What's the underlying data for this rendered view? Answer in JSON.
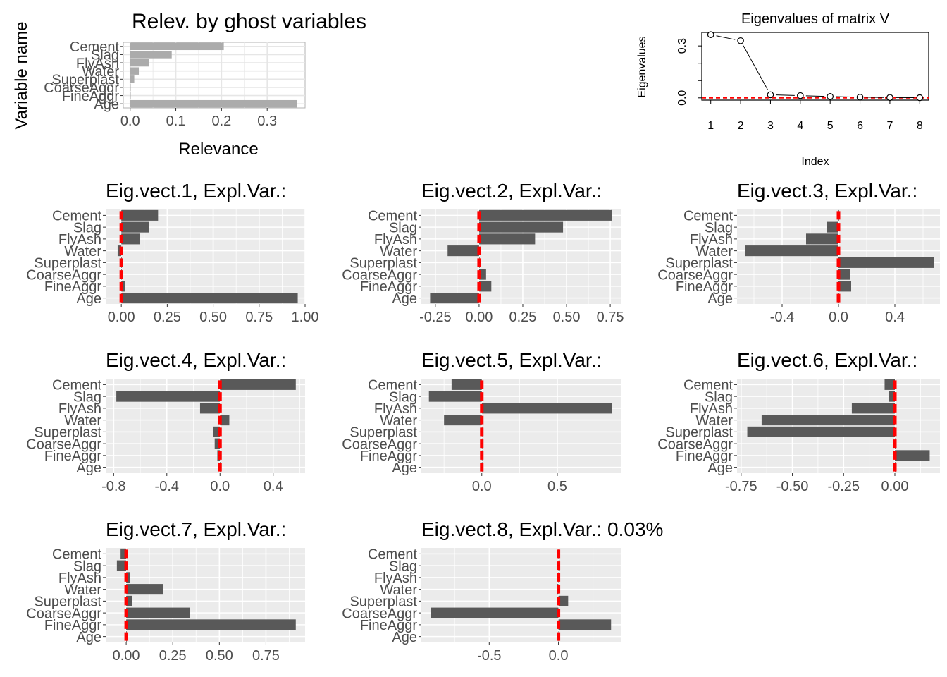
{
  "figure_colors": {
    "panel_bg": "#EBEBEB",
    "grid": "#FFFFFF",
    "bar": "#595959",
    "relevance_bar": "#ABABAB",
    "marker": "#FF0000",
    "text": "#4D4D4D",
    "title": "#000000"
  },
  "chart_data": [
    {
      "id": "relevance",
      "type": "bar",
      "orientation": "horizontal",
      "title": "Relev. by ghost variables",
      "xlabel": "Relevance",
      "ylabel": "Variable name",
      "categories": [
        "Cement",
        "Slag",
        "FlyAsh",
        "Water",
        "Superplast",
        "CoarseAggr",
        "FineAggr",
        "Age"
      ],
      "values": [
        0.205,
        0.091,
        0.042,
        0.019,
        0.009,
        0.001,
        0.001,
        0.365
      ],
      "xlim": [
        -0.015,
        0.383
      ],
      "xticks": [
        0.0,
        0.1,
        0.2,
        0.3
      ],
      "xtick_labels": [
        "0.0",
        "0.1",
        "0.2",
        "0.3"
      ],
      "grid": true
    },
    {
      "id": "eigenvalues",
      "type": "scatter",
      "title": "Eigenvalues of matrix V",
      "xlabel": "Index",
      "ylabel": "Eigenvalues",
      "x": [
        1,
        2,
        3,
        4,
        5,
        6,
        7,
        8
      ],
      "y": [
        0.365,
        0.33,
        0.018,
        0.013,
        0.008,
        0.004,
        0.002,
        0.001
      ],
      "reference_line": 0,
      "xlim": [
        0.7,
        8.3
      ],
      "ylim": [
        -0.013,
        0.378
      ],
      "xticks": [
        1,
        2,
        3,
        4,
        5,
        6,
        7,
        8
      ],
      "yticks": [
        0.0,
        0.3
      ],
      "ytick_labels": [
        "0.0",
        "0.3"
      ],
      "grid": false
    },
    {
      "id": "ev1",
      "type": "bar",
      "orientation": "horizontal",
      "title": "Eig.vect.1, Expl.Var.:",
      "categories": [
        "Cement",
        "Slag",
        "FlyAsh",
        "Water",
        "Superplast",
        "CoarseAggr",
        "FineAggr",
        "Age"
      ],
      "values": [
        0.2,
        0.15,
        0.1,
        -0.02,
        0.0,
        0.0,
        0.02,
        0.96
      ],
      "markers": [
        0,
        0,
        0,
        0,
        0,
        0,
        0,
        0
      ],
      "xlim": [
        -0.085,
        1.0
      ],
      "xticks": [
        0.0,
        0.25,
        0.5,
        0.75,
        1.0
      ],
      "xtick_labels": [
        "0.00",
        "0.25",
        "0.50",
        "0.75",
        "1.00"
      ],
      "grid": true
    },
    {
      "id": "ev2",
      "type": "bar",
      "orientation": "horizontal",
      "title": "Eig.vect.2, Expl.Var.:",
      "categories": [
        "Cement",
        "Slag",
        "FlyAsh",
        "Water",
        "Superplast",
        "CoarseAggr",
        "FineAggr",
        "Age"
      ],
      "values": [
        0.76,
        0.48,
        0.32,
        -0.18,
        0.0,
        0.04,
        0.07,
        -0.28
      ],
      "markers": [
        0,
        0,
        0,
        0,
        0,
        0,
        0,
        0
      ],
      "xlim": [
        -0.33,
        0.81
      ],
      "xticks": [
        -0.25,
        0.0,
        0.25,
        0.5,
        0.75
      ],
      "xtick_labels": [
        "-0.25",
        "0.00",
        "0.25",
        "0.50",
        "0.75"
      ],
      "grid": true
    },
    {
      "id": "ev3",
      "type": "bar",
      "orientation": "horizontal",
      "title": "Eig.vect.3, Expl.Var.:",
      "categories": [
        "Cement",
        "Slag",
        "FlyAsh",
        "Water",
        "Superplast",
        "CoarseAggr",
        "FineAggr",
        "Age"
      ],
      "values": [
        0.0,
        -0.08,
        -0.23,
        -0.66,
        0.68,
        0.08,
        0.09,
        0.0
      ],
      "markers": [
        0,
        0,
        0,
        0,
        0,
        0,
        0,
        0
      ],
      "xlim": [
        -0.72,
        0.72
      ],
      "xticks": [
        -0.4,
        0.0,
        0.4
      ],
      "xtick_labels": [
        "-0.4",
        "0.0",
        "0.4"
      ],
      "grid": true
    },
    {
      "id": "ev4",
      "type": "bar",
      "orientation": "horizontal",
      "title": "Eig.vect.4, Expl.Var.:",
      "categories": [
        "Cement",
        "Slag",
        "FlyAsh",
        "Water",
        "Superplast",
        "CoarseAggr",
        "FineAggr",
        "Age"
      ],
      "values": [
        0.57,
        -0.78,
        -0.15,
        0.07,
        -0.05,
        -0.04,
        -0.02,
        0.0
      ],
      "markers": [
        0,
        0,
        0,
        0,
        0,
        0,
        0,
        0
      ],
      "xlim": [
        -0.86,
        0.64
      ],
      "xticks": [
        -0.8,
        -0.4,
        0.0,
        0.4
      ],
      "xtick_labels": [
        "-0.8",
        "-0.4",
        "0.0",
        "0.4"
      ],
      "grid": true
    },
    {
      "id": "ev5",
      "type": "bar",
      "orientation": "horizontal",
      "title": "Eig.vect.5, Expl.Var.:",
      "categories": [
        "Cement",
        "Slag",
        "FlyAsh",
        "Water",
        "Superplast",
        "CoarseAggr",
        "FineAggr",
        "Age"
      ],
      "values": [
        -0.2,
        -0.35,
        0.86,
        -0.25,
        0.0,
        0.0,
        0.0,
        0.0
      ],
      "markers": [
        0,
        0,
        0,
        0,
        0,
        0,
        0,
        0
      ],
      "xlim": [
        -0.4,
        0.92
      ],
      "xticks": [
        0.0,
        0.5
      ],
      "xtick_labels": [
        "0.0",
        "0.5"
      ],
      "grid": true
    },
    {
      "id": "ev6",
      "type": "bar",
      "orientation": "horizontal",
      "title": "Eig.vect.6, Expl.Var.:",
      "categories": [
        "Cement",
        "Slag",
        "FlyAsh",
        "Water",
        "Superplast",
        "CoarseAggr",
        "FineAggr",
        "Age"
      ],
      "values": [
        -0.05,
        -0.03,
        -0.21,
        -0.65,
        -0.72,
        0.0,
        0.17,
        0.0
      ],
      "markers": [
        0,
        0,
        0,
        0,
        0,
        0,
        0,
        0
      ],
      "xlim": [
        -0.77,
        0.22
      ],
      "xticks": [
        -0.75,
        -0.5,
        -0.25,
        0.0
      ],
      "xtick_labels": [
        "-0.75",
        "-0.50",
        "-0.25",
        "0.00"
      ],
      "grid": true
    },
    {
      "id": "ev7",
      "type": "bar",
      "orientation": "horizontal",
      "title": "Eig.vect.7, Expl.Var.:",
      "categories": [
        "Cement",
        "Slag",
        "FlyAsh",
        "Water",
        "Superplast",
        "CoarseAggr",
        "FineAggr",
        "Age"
      ],
      "values": [
        -0.03,
        -0.05,
        0.02,
        0.2,
        0.03,
        0.34,
        0.91,
        0.0
      ],
      "markers": [
        0,
        0,
        0,
        0,
        0,
        0,
        0,
        0
      ],
      "xlim": [
        -0.11,
        0.96
      ],
      "xticks": [
        0.0,
        0.25,
        0.5,
        0.75
      ],
      "xtick_labels": [
        "0.00",
        "0.25",
        "0.50",
        "0.75"
      ],
      "grid": true
    },
    {
      "id": "ev8",
      "type": "bar",
      "orientation": "horizontal",
      "title": "Eig.vect.8, Expl.Var.: 0.03%",
      "categories": [
        "Cement",
        "Slag",
        "FlyAsh",
        "Water",
        "Superplast",
        "CoarseAggr",
        "FineAggr",
        "Age"
      ],
      "values": [
        0.0,
        0.01,
        0.0,
        -0.01,
        0.07,
        -0.92,
        0.38,
        0.0
      ],
      "markers": [
        0,
        0,
        0,
        0,
        0,
        0,
        0,
        0
      ],
      "xlim": [
        -0.99,
        0.45
      ],
      "xticks": [
        -0.5,
        0.0
      ],
      "xtick_labels": [
        "-0.5",
        "0.0"
      ],
      "grid": true
    }
  ]
}
